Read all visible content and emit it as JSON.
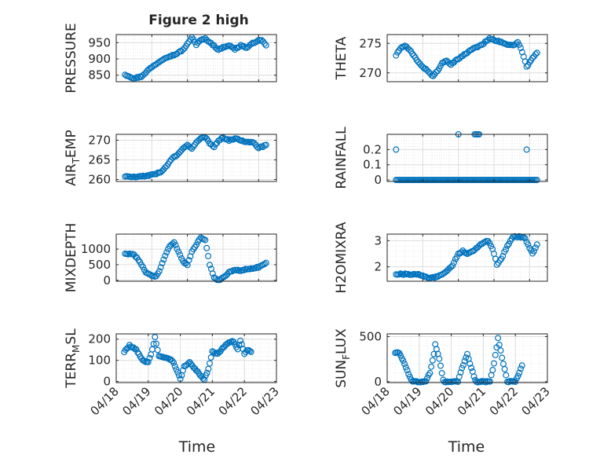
{
  "figure": {
    "title": "Figure 2 high",
    "x_label": "Time"
  },
  "colors": {
    "marker": "#0072BD",
    "axes": "#262626",
    "grid": "#dcdcdc",
    "minor_grid": "#e6e6e6",
    "background": "#ffffff"
  },
  "chart_data": [
    {
      "type": "scatter",
      "name": "PRESSURE",
      "ylabel": "PRESSURE",
      "marker": "circle-open",
      "grid": true,
      "minor_grid": true,
      "ylim": [
        830,
        975
      ],
      "yticks": [
        850,
        900,
        950
      ],
      "ytick_labels": [
        "850",
        "900",
        "950"
      ],
      "xlim": [
        "04/18 00:00",
        "04/22 12:00"
      ],
      "xticks": [],
      "anchors": [
        [
          "04/18 06:00",
          852
        ],
        [
          "04/18 12:00",
          840
        ],
        [
          "04/18 17:00",
          846
        ],
        [
          "04/18 22:00",
          868
        ],
        [
          "04/19 04:00",
          888
        ],
        [
          "04/19 09:00",
          904
        ],
        [
          "04/19 16:00",
          914
        ],
        [
          "04/19 21:00",
          928
        ],
        [
          "04/20 01:00",
          952
        ],
        [
          "04/20 03:00",
          968
        ],
        [
          "04/20 06:00",
          944
        ],
        [
          "04/20 09:00",
          958
        ],
        [
          "04/20 12:00",
          962
        ],
        [
          "04/20 15:00",
          952
        ],
        [
          "04/20 18:00",
          940
        ],
        [
          "04/20 21:00",
          928
        ],
        [
          "04/21 00:00",
          936
        ],
        [
          "04/21 04:00",
          942
        ],
        [
          "04/21 08:00",
          930
        ],
        [
          "04/21 12:00",
          942
        ],
        [
          "04/21 16:00",
          934
        ],
        [
          "04/21 20:00",
          948
        ],
        [
          "04/21 23:00",
          956
        ],
        [
          "04/22 02:00",
          958
        ],
        [
          "04/22 05:00",
          942
        ]
      ]
    },
    {
      "type": "scatter",
      "name": "THETA",
      "ylabel": "THETA",
      "marker": "circle-open",
      "grid": true,
      "minor_grid": true,
      "ylim": [
        268.5,
        276.5
      ],
      "yticks": [
        270,
        275
      ],
      "ytick_labels": [
        "270",
        "275"
      ],
      "xlim": [
        "04/18 00:00",
        "04/22 12:00"
      ],
      "xticks": [],
      "anchors": [
        [
          "04/18 06:00",
          273.0
        ],
        [
          "04/18 09:00",
          274.2
        ],
        [
          "04/18 12:00",
          274.6
        ],
        [
          "04/18 16:00",
          273.6
        ],
        [
          "04/18 20:00",
          272.2
        ],
        [
          "04/19 00:00",
          271.0
        ],
        [
          "04/19 04:00",
          270.2
        ],
        [
          "04/19 07:00",
          269.4
        ],
        [
          "04/19 10:00",
          270.4
        ],
        [
          "04/19 13:00",
          271.6
        ],
        [
          "04/19 16:00",
          272.0
        ],
        [
          "04/19 19:00",
          271.4
        ],
        [
          "04/19 22:00",
          272.0
        ],
        [
          "04/20 02:00",
          272.8
        ],
        [
          "04/20 06:00",
          273.4
        ],
        [
          "04/20 10:00",
          274.2
        ],
        [
          "04/20 14:00",
          274.5
        ],
        [
          "04/20 18:00",
          275.2
        ],
        [
          "04/20 21:00",
          275.9
        ],
        [
          "04/21 01:00",
          275.5
        ],
        [
          "04/21 05:00",
          275.2
        ],
        [
          "04/21 09:00",
          274.8
        ],
        [
          "04/21 13:00",
          274.6
        ],
        [
          "04/21 16:00",
          275.2
        ],
        [
          "04/21 19:00",
          273.6
        ],
        [
          "04/21 22:00",
          271.0
        ],
        [
          "04/22 02:00",
          272.5
        ],
        [
          "04/22 05:00",
          273.4
        ]
      ]
    },
    {
      "type": "scatter",
      "name": "AIR_TEMP",
      "ylabel": "AIR_TEMP",
      "ylabel_parts": [
        "AIR",
        "T",
        "EMP"
      ],
      "marker": "circle-open",
      "grid": true,
      "minor_grid": true,
      "ylim": [
        259.5,
        271.5
      ],
      "yticks": [
        260,
        265,
        270
      ],
      "ytick_labels": [
        "260",
        "265",
        "270"
      ],
      "xlim": [
        "04/18 00:00",
        "04/22 12:00"
      ],
      "xticks": [],
      "anchors": [
        [
          "04/18 06:00",
          260.8
        ],
        [
          "04/18 12:00",
          260.6
        ],
        [
          "04/18 18:00",
          260.8
        ],
        [
          "04/19 00:00",
          261.2
        ],
        [
          "04/19 06:00",
          261.8
        ],
        [
          "04/19 10:00",
          263.5
        ],
        [
          "04/19 14:00",
          265.5
        ],
        [
          "04/19 18:00",
          266.5
        ],
        [
          "04/19 21:00",
          267.8
        ],
        [
          "04/20 00:00",
          268.8
        ],
        [
          "04/20 03:00",
          268.0
        ],
        [
          "04/20 06:00",
          269.4
        ],
        [
          "04/20 09:00",
          270.4
        ],
        [
          "04/20 12:00",
          270.8
        ],
        [
          "04/20 15:00",
          269.2
        ],
        [
          "04/20 18:00",
          268.4
        ],
        [
          "04/20 21:00",
          270.0
        ],
        [
          "04/21 00:00",
          270.6
        ],
        [
          "04/21 04:00",
          270.0
        ],
        [
          "04/21 08:00",
          270.4
        ],
        [
          "04/21 12:00",
          270.0
        ],
        [
          "04/21 16:00",
          269.6
        ],
        [
          "04/21 20:00",
          269.6
        ],
        [
          "04/22 00:00",
          268.0
        ],
        [
          "04/22 03:00",
          268.4
        ],
        [
          "04/22 05:00",
          268.8
        ]
      ]
    },
    {
      "type": "scatter",
      "name": "RAINFALL",
      "ylabel": "RAINFALL",
      "marker": "circle-open",
      "grid": true,
      "minor_grid": true,
      "ylim": [
        -0.01,
        0.3
      ],
      "yticks": [
        0,
        0.1,
        0.2
      ],
      "ytick_labels": [
        "0",
        "0.1",
        "0.2"
      ],
      "xlim": [
        "04/18 00:00",
        "04/22 12:00"
      ],
      "xticks": [],
      "baseline": 0,
      "baseline_range": [
        "04/18 06:00",
        "04/22 05:00"
      ],
      "spikes": [
        [
          "04/18 06:00",
          0.2
        ],
        [
          "04/20 00:00",
          0.3
        ],
        [
          "04/20 11:00",
          0.3
        ],
        [
          "04/20 12:00",
          0.3
        ],
        [
          "04/20 13:00",
          0.3
        ],
        [
          "04/20 14:00",
          0.3
        ],
        [
          "04/21 22:00",
          0.2
        ]
      ]
    },
    {
      "type": "scatter",
      "name": "MIXDEPTH",
      "ylabel": "MIXDEPTH",
      "marker": "circle-open",
      "grid": true,
      "minor_grid": true,
      "ylim": [
        -30,
        1480
      ],
      "yticks": [
        0,
        500,
        1000
      ],
      "ytick_labels": [
        "0",
        "500",
        "1000"
      ],
      "xlim": [
        "04/18 00:00",
        "04/22 12:00"
      ],
      "xticks": [],
      "anchors": [
        [
          "04/18 06:00",
          860
        ],
        [
          "04/18 12:00",
          820
        ],
        [
          "04/18 16:00",
          600
        ],
        [
          "04/18 20:00",
          250
        ],
        [
          "04/19 00:00",
          150
        ],
        [
          "04/19 03:00",
          120
        ],
        [
          "04/19 06:00",
          400
        ],
        [
          "04/19 09:00",
          800
        ],
        [
          "04/19 12:00",
          1100
        ],
        [
          "04/19 15:00",
          1220
        ],
        [
          "04/19 18:00",
          900
        ],
        [
          "04/19 21:00",
          600
        ],
        [
          "04/20 00:00",
          500
        ],
        [
          "04/20 03:00",
          900
        ],
        [
          "04/20 06:00",
          1150
        ],
        [
          "04/20 09:00",
          1380
        ],
        [
          "04/20 12:00",
          1300
        ],
        [
          "04/20 15:00",
          500
        ],
        [
          "04/20 18:00",
          100
        ],
        [
          "04/20 21:00",
          0
        ],
        [
          "04/21 00:00",
          80
        ],
        [
          "04/21 04:00",
          250
        ],
        [
          "04/21 08:00",
          350
        ],
        [
          "04/21 12:00",
          300
        ],
        [
          "04/21 16:00",
          360
        ],
        [
          "04/21 20:00",
          380
        ],
        [
          "04/22 00:00",
          420
        ],
        [
          "04/22 05:00",
          560
        ]
      ]
    },
    {
      "type": "scatter",
      "name": "H2OMIXRA",
      "ylabel": "H2OMIXRA",
      "marker": "circle-open",
      "grid": true,
      "minor_grid": true,
      "ylim": [
        1.45,
        3.25
      ],
      "yticks": [
        2,
        3
      ],
      "ytick_labels": [
        "2",
        "3"
      ],
      "xlim": [
        "04/18 00:00",
        "04/22 12:00"
      ],
      "xticks": [],
      "anchors": [
        [
          "04/18 06:00",
          1.72
        ],
        [
          "04/18 14:00",
          1.72
        ],
        [
          "04/18 22:00",
          1.7
        ],
        [
          "04/19 04:00",
          1.58
        ],
        [
          "04/19 10:00",
          1.62
        ],
        [
          "04/19 15:00",
          1.8
        ],
        [
          "04/19 20:00",
          2.05
        ],
        [
          "04/20 00:00",
          2.5
        ],
        [
          "04/20 03:00",
          2.6
        ],
        [
          "04/20 06:00",
          2.5
        ],
        [
          "04/20 10:00",
          2.6
        ],
        [
          "04/20 14:00",
          2.8
        ],
        [
          "04/20 17:00",
          2.95
        ],
        [
          "04/20 20:00",
          3.0
        ],
        [
          "04/20 23:00",
          2.7
        ],
        [
          "04/21 02:00",
          2.1
        ],
        [
          "04/21 05:00",
          2.3
        ],
        [
          "04/21 09:00",
          2.8
        ],
        [
          "04/21 13:00",
          3.15
        ],
        [
          "04/21 17:00",
          3.15
        ],
        [
          "04/21 21:00",
          3.1
        ],
        [
          "04/22 00:00",
          2.7
        ],
        [
          "04/22 02:00",
          2.5
        ],
        [
          "04/22 05:00",
          2.85
        ]
      ]
    },
    {
      "type": "scatter",
      "name": "TERR_MSL",
      "ylabel": "TERR_MSL",
      "ylabel_parts": [
        "TERR",
        "M",
        "SL"
      ],
      "marker": "circle-open",
      "grid": true,
      "minor_grid": true,
      "ylim": [
        -5,
        225
      ],
      "yticks": [
        0,
        100,
        200
      ],
      "ytick_labels": [
        "0",
        "100",
        "200"
      ],
      "xlim": [
        "04/18 00:00",
        "04/23 00:00"
      ],
      "xticks": [
        "04/18",
        "04/19",
        "04/20",
        "04/21",
        "04/22",
        "04/23"
      ],
      "anchors": [
        [
          "04/18 06:00",
          140
        ],
        [
          "04/18 10:00",
          170
        ],
        [
          "04/18 15:00",
          150
        ],
        [
          "04/18 20:00",
          100
        ],
        [
          "04/19 00:00",
          90
        ],
        [
          "04/19 03:00",
          150
        ],
        [
          "04/19 05:00",
          210
        ],
        [
          "04/19 08:00",
          120
        ],
        [
          "04/19 13:00",
          110
        ],
        [
          "04/19 18:00",
          100
        ],
        [
          "04/19 21:00",
          60
        ],
        [
          "04/20 00:00",
          10
        ],
        [
          "04/20 03:00",
          70
        ],
        [
          "04/20 07:00",
          90
        ],
        [
          "04/20 11:00",
          60
        ],
        [
          "04/20 15:00",
          30
        ],
        [
          "04/20 18:00",
          10
        ],
        [
          "04/20 21:00",
          60
        ],
        [
          "04/21 00:00",
          140
        ],
        [
          "04/21 04:00",
          130
        ],
        [
          "04/21 08:00",
          160
        ],
        [
          "04/21 12:00",
          185
        ],
        [
          "04/21 16:00",
          190
        ],
        [
          "04/21 19:00",
          150
        ],
        [
          "04/21 21:00",
          195
        ],
        [
          "04/22 00:00",
          130
        ],
        [
          "04/22 02:00",
          150
        ],
        [
          "04/22 05:00",
          140
        ]
      ]
    },
    {
      "type": "scatter",
      "name": "SUN_FLUX",
      "ylabel": "SUN_FLUX",
      "ylabel_parts": [
        "SUN",
        "F",
        "LUX"
      ],
      "marker": "circle-open",
      "grid": true,
      "minor_grid": true,
      "ylim": [
        -10,
        530
      ],
      "yticks": [
        0,
        500
      ],
      "ytick_labels": [
        "0",
        "500"
      ],
      "xlim": [
        "04/18 00:00",
        "04/23 00:00"
      ],
      "xticks": [
        "04/18",
        "04/19",
        "04/20",
        "04/21",
        "04/22",
        "04/23"
      ],
      "anchors": [
        [
          "04/18 06:00",
          320
        ],
        [
          "04/18 09:00",
          320
        ],
        [
          "04/18 13:00",
          200
        ],
        [
          "04/18 17:00",
          50
        ],
        [
          "04/18 19:00",
          0
        ],
        [
          "04/19 05:00",
          0
        ],
        [
          "04/19 08:00",
          100
        ],
        [
          "04/19 11:00",
          300
        ],
        [
          "04/19 12:00",
          410
        ],
        [
          "04/19 15:00",
          250
        ],
        [
          "04/19 18:00",
          20
        ],
        [
          "04/19 19:00",
          0
        ],
        [
          "04/20 05:00",
          0
        ],
        [
          "04/20 08:00",
          150
        ],
        [
          "04/20 12:00",
          300
        ],
        [
          "04/20 15:00",
          150
        ],
        [
          "04/20 18:00",
          20
        ],
        [
          "04/20 19:00",
          0
        ],
        [
          "04/21 05:00",
          0
        ],
        [
          "04/21 08:00",
          200
        ],
        [
          "04/21 11:00",
          480
        ],
        [
          "04/21 15:00",
          200
        ],
        [
          "04/21 18:00",
          0
        ],
        [
          "04/22 00:00",
          0
        ],
        [
          "04/22 03:00",
          100
        ],
        [
          "04/22 05:00",
          180
        ]
      ]
    }
  ]
}
